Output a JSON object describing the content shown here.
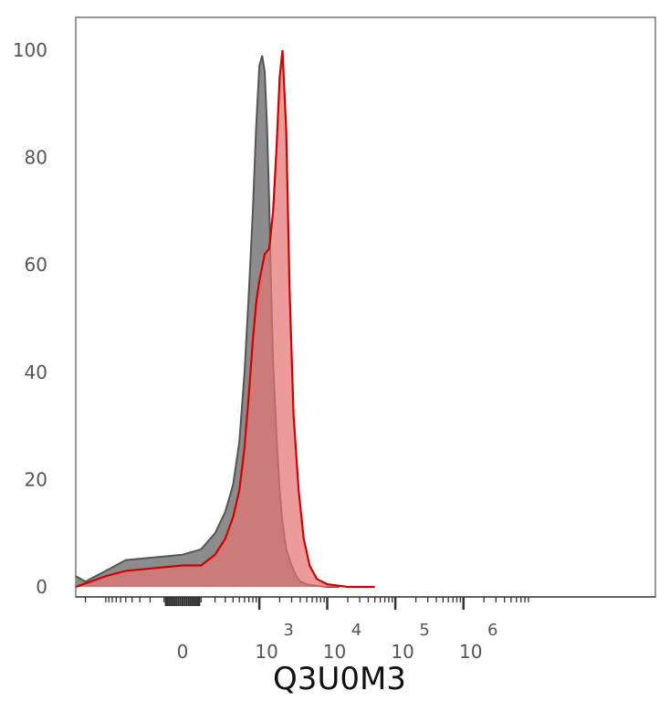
{
  "chart_data": {
    "type": "area",
    "title": "",
    "xlabel": "Q3U0M3",
    "ylabel": "",
    "x_scale": "biexponential",
    "x_tick_labels": [
      {
        "base": "0",
        "exp": "",
        "x": 0
      },
      {
        "base": "10",
        "exp": "3",
        "x": 1000
      },
      {
        "base": "10",
        "exp": "4",
        "x": 10000
      },
      {
        "base": "10",
        "exp": "5",
        "x": 100000
      },
      {
        "base": "10",
        "exp": "6",
        "x": 1000000
      }
    ],
    "y_ticks": [
      "0",
      "20",
      "40",
      "60",
      "80",
      "100"
    ],
    "ylim": [
      0,
      105
    ],
    "grid": false,
    "legend": "none",
    "series": [
      {
        "color": "#555555",
        "fill": "#8c8c8c",
        "x": [
          -3000,
          -2000,
          -1000,
          -500,
          0,
          100,
          200,
          300,
          400,
          500,
          600,
          700,
          800,
          900,
          1000,
          1100,
          1200,
          1300,
          1400,
          1500,
          1600,
          1800,
          2000,
          2200,
          2500,
          3000,
          3500,
          4000,
          5000,
          7000,
          10000,
          15000
        ],
        "values": [
          2,
          1,
          3,
          5,
          6,
          7,
          10,
          14,
          19,
          27,
          40,
          55,
          70,
          86,
          97,
          99,
          96,
          86,
          72,
          55,
          42,
          28,
          18,
          12,
          7,
          4,
          2,
          1,
          0.5,
          0.2,
          0,
          0
        ]
      },
      {
        "color": "#cc0000",
        "fill": "#e57373",
        "x": [
          -3000,
          -1000,
          -500,
          0,
          100,
          200,
          300,
          400,
          500,
          600,
          700,
          800,
          900,
          1000,
          1200,
          1400,
          1600,
          1800,
          2000,
          2200,
          2500,
          2800,
          3200,
          3800,
          4500,
          5500,
          7000,
          10000,
          20000,
          50000
        ],
        "values": [
          0,
          2,
          3,
          4,
          4,
          6,
          9,
          13,
          18,
          26,
          36,
          46,
          53,
          57,
          62,
          63,
          70,
          82,
          95,
          100,
          85,
          55,
          32,
          18,
          9,
          4,
          1.5,
          0.5,
          0,
          0
        ]
      }
    ]
  }
}
